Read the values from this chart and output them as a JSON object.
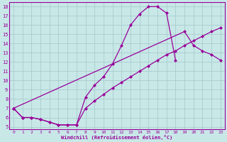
{
  "bg_color": "#c8e8e8",
  "grid_color": "#aacccc",
  "line_color": "#990099",
  "xlabel": "Windchill (Refroidissement éolien,°C)",
  "xlim": [
    -0.5,
    23.5
  ],
  "ylim": [
    4.7,
    18.5
  ],
  "xticks": [
    0,
    1,
    2,
    3,
    4,
    5,
    6,
    7,
    8,
    9,
    10,
    11,
    12,
    13,
    14,
    15,
    16,
    17,
    18,
    19,
    20,
    21,
    22,
    23
  ],
  "yticks": [
    5,
    6,
    7,
    8,
    9,
    10,
    11,
    12,
    13,
    14,
    15,
    16,
    17,
    18
  ],
  "curve1_x": [
    0,
    1,
    2,
    3,
    4,
    5,
    6,
    7,
    8,
    9,
    10,
    11,
    12,
    13,
    14,
    15,
    16,
    17,
    18
  ],
  "curve1_y": [
    7,
    6,
    6,
    5.8,
    5.5,
    5.2,
    5.2,
    5.2,
    8.2,
    9.5,
    10.4,
    11.8,
    13.8,
    16.0,
    17.2,
    18.0,
    18.0,
    17.3,
    12.2
  ],
  "curve2_x": [
    0,
    1,
    2,
    3,
    4,
    5,
    6,
    7,
    8,
    9,
    10,
    11,
    12,
    13,
    14,
    15,
    16,
    17,
    18,
    19,
    20,
    21,
    22,
    23
  ],
  "curve2_y": [
    7,
    6,
    6,
    5.8,
    5.5,
    5.2,
    5.2,
    5.2,
    7.0,
    7.8,
    8.5,
    9.2,
    9.8,
    10.4,
    11.0,
    11.6,
    12.2,
    12.8,
    13.2,
    13.8,
    14.3,
    14.8,
    15.3,
    15.7
  ],
  "curve3_x": [
    0,
    19,
    20,
    21,
    22,
    23
  ],
  "curve3_y": [
    7,
    15.3,
    13.8,
    13.2,
    12.8,
    12.2
  ],
  "lw": 0.9,
  "ms": 2.5,
  "tick_fontsize_x": 4.5,
  "tick_fontsize_y": 5.0,
  "xlabel_fontsize": 5.0
}
